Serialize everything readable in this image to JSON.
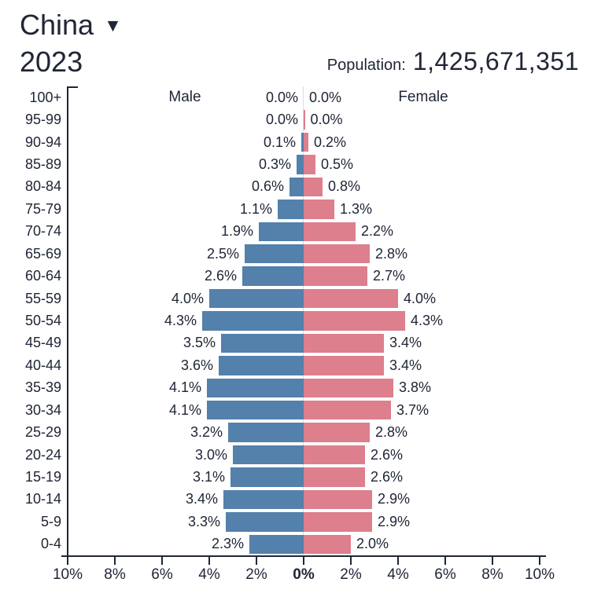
{
  "header": {
    "country": "China",
    "dropdown_icon": "▼",
    "year": "2023",
    "population_label": "Population:",
    "population_value": "1,425,671,351"
  },
  "chart_data": {
    "type": "bar",
    "subtype": "population-pyramid",
    "title": "China 2023 population pyramid",
    "legend": {
      "male": "Male",
      "female": "Female"
    },
    "x_axis": {
      "tick_labels": [
        "10%",
        "8%",
        "6%",
        "4%",
        "2%",
        "0%",
        "2%",
        "4%",
        "6%",
        "8%",
        "10%"
      ],
      "tick_step_pct": 2,
      "max_each_side_pct": 10,
      "zero_label_bold": true
    },
    "colors": {
      "male": "#5480ac",
      "female": "#dd7f8d",
      "text": "#202636",
      "axis": "#202636",
      "zero_line": "#d9dce1"
    },
    "rows": [
      {
        "age": "100+",
        "male_label": "0.0%",
        "female_label": "0.0%",
        "male_pct": 0.0,
        "female_pct": 0.0
      },
      {
        "age": "95-99",
        "male_label": "0.0%",
        "female_label": "0.0%",
        "male_pct": 0.0,
        "female_pct": 0.05
      },
      {
        "age": "90-94",
        "male_label": "0.1%",
        "female_label": "0.2%",
        "male_pct": 0.1,
        "female_pct": 0.2
      },
      {
        "age": "85-89",
        "male_label": "0.3%",
        "female_label": "0.5%",
        "male_pct": 0.3,
        "female_pct": 0.5
      },
      {
        "age": "80-84",
        "male_label": "0.6%",
        "female_label": "0.8%",
        "male_pct": 0.6,
        "female_pct": 0.8
      },
      {
        "age": "75-79",
        "male_label": "1.1%",
        "female_label": "1.3%",
        "male_pct": 1.1,
        "female_pct": 1.3
      },
      {
        "age": "70-74",
        "male_label": "1.9%",
        "female_label": "2.2%",
        "male_pct": 1.9,
        "female_pct": 2.2
      },
      {
        "age": "65-69",
        "male_label": "2.5%",
        "female_label": "2.8%",
        "male_pct": 2.5,
        "female_pct": 2.8
      },
      {
        "age": "60-64",
        "male_label": "2.6%",
        "female_label": "2.7%",
        "male_pct": 2.6,
        "female_pct": 2.7
      },
      {
        "age": "55-59",
        "male_label": "4.0%",
        "female_label": "4.0%",
        "male_pct": 4.0,
        "female_pct": 4.0
      },
      {
        "age": "50-54",
        "male_label": "4.3%",
        "female_label": "4.3%",
        "male_pct": 4.3,
        "female_pct": 4.3
      },
      {
        "age": "45-49",
        "male_label": "3.5%",
        "female_label": "3.4%",
        "male_pct": 3.5,
        "female_pct": 3.4
      },
      {
        "age": "40-44",
        "male_label": "3.6%",
        "female_label": "3.4%",
        "male_pct": 3.6,
        "female_pct": 3.4
      },
      {
        "age": "35-39",
        "male_label": "4.1%",
        "female_label": "3.8%",
        "male_pct": 4.1,
        "female_pct": 3.8
      },
      {
        "age": "30-34",
        "male_label": "4.1%",
        "female_label": "3.7%",
        "male_pct": 4.1,
        "female_pct": 3.7
      },
      {
        "age": "25-29",
        "male_label": "3.2%",
        "female_label": "2.8%",
        "male_pct": 3.2,
        "female_pct": 2.8
      },
      {
        "age": "20-24",
        "male_label": "3.0%",
        "female_label": "2.6%",
        "male_pct": 3.0,
        "female_pct": 2.6
      },
      {
        "age": "15-19",
        "male_label": "3.1%",
        "female_label": "2.6%",
        "male_pct": 3.1,
        "female_pct": 2.6
      },
      {
        "age": "10-14",
        "male_label": "3.4%",
        "female_label": "2.9%",
        "male_pct": 3.4,
        "female_pct": 2.9
      },
      {
        "age": "5-9",
        "male_label": "3.3%",
        "female_label": "2.9%",
        "male_pct": 3.3,
        "female_pct": 2.9
      },
      {
        "age": "0-4",
        "male_label": "2.3%",
        "female_label": "2.0%",
        "male_pct": 2.3,
        "female_pct": 2.0
      }
    ]
  }
}
